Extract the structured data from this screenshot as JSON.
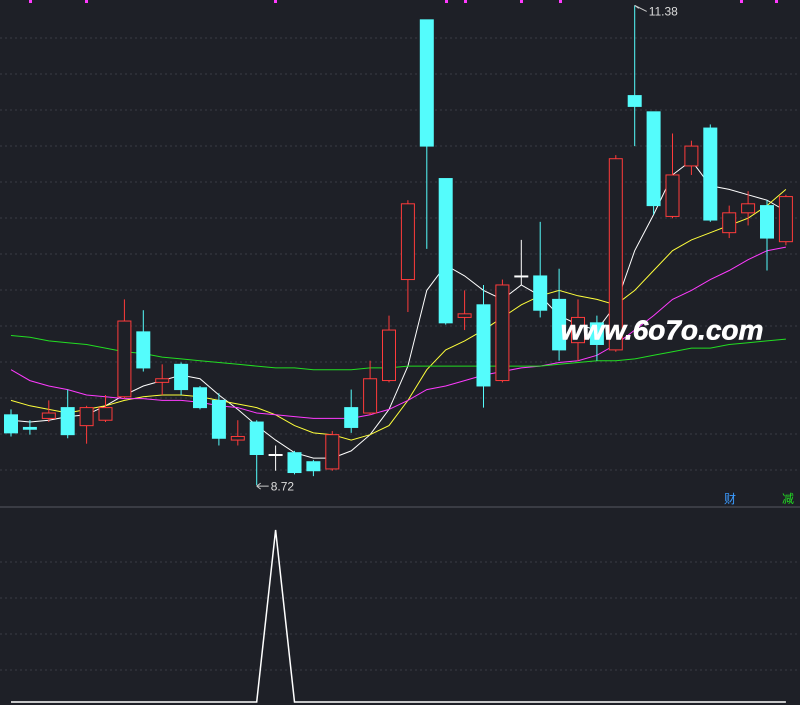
{
  "chart_data": [
    {
      "type": "candlestick",
      "up_color": "#ff3b3b",
      "down_color": "#54fcfc",
      "flat_color": "#ffffff",
      "ylim": [
        8.61,
        11.41
      ],
      "open": [
        9.11,
        9.04,
        9.09,
        9.15,
        9.05,
        9.08,
        9.21,
        9.57,
        9.29,
        9.39,
        9.26,
        9.19,
        8.97,
        9.07,
        8.89,
        8.9,
        8.85,
        8.81,
        9.15,
        9.12,
        9.3,
        9.86,
        11.3,
        10.42,
        9.65,
        9.72,
        9.3,
        9.88,
        9.88,
        9.75,
        9.51,
        9.62,
        9.47,
        10.88,
        10.79,
        10.21,
        10.49,
        10.7,
        10.12,
        10.23,
        10.27,
        10.07
      ],
      "close": [
        9.01,
        9.03,
        9.12,
        9.0,
        9.15,
        9.15,
        9.63,
        9.37,
        9.31,
        9.25,
        9.15,
        8.98,
        8.99,
        8.89,
        8.89,
        8.79,
        8.8,
        9.0,
        9.04,
        9.31,
        9.58,
        10.28,
        10.6,
        9.62,
        9.67,
        9.27,
        9.83,
        9.88,
        9.69,
        9.47,
        9.65,
        9.5,
        10.53,
        10.82,
        10.27,
        10.44,
        10.6,
        10.19,
        10.23,
        10.28,
        10.09,
        10.32
      ],
      "high": [
        9.14,
        9.08,
        9.19,
        9.25,
        9.16,
        9.22,
        9.75,
        9.69,
        9.39,
        9.4,
        9.27,
        9.23,
        9.08,
        9.08,
        8.94,
        8.91,
        8.86,
        9.02,
        9.25,
        9.41,
        9.66,
        10.3,
        11.3,
        10.42,
        9.8,
        9.83,
        9.86,
        10.08,
        10.18,
        9.92,
        9.75,
        9.66,
        10.55,
        11.38,
        10.79,
        10.67,
        10.63,
        10.72,
        10.27,
        10.35,
        10.3,
        10.33
      ],
      "low": [
        8.99,
        9.0,
        9.07,
        8.98,
        8.95,
        9.07,
        9.2,
        9.35,
        9.22,
        9.22,
        9.14,
        8.94,
        8.94,
        8.72,
        8.8,
        8.78,
        8.77,
        8.8,
        9.01,
        9.11,
        9.29,
        9.68,
        10.03,
        9.61,
        9.58,
        9.15,
        9.29,
        9.83,
        9.65,
        9.41,
        9.41,
        9.41,
        9.46,
        10.6,
        10.22,
        10.2,
        10.44,
        10.18,
        10.09,
        10.16,
        9.91,
        10.05
      ],
      "series": [
        {
          "color": "#ffffff",
          "values": [
            9.08,
            9.07,
            9.08,
            9.1,
            9.11,
            9.16,
            9.22,
            9.27,
            9.3,
            9.33,
            9.31,
            9.22,
            9.14,
            9.05,
            8.97,
            8.9,
            8.87,
            8.87,
            8.91,
            9.0,
            9.14,
            9.38,
            9.8,
            9.94,
            9.88,
            9.8,
            9.75,
            9.83,
            9.77,
            9.66,
            9.61,
            9.58,
            9.72,
            10.02,
            10.22,
            10.44,
            10.52,
            10.38,
            10.36,
            10.33,
            10.3,
            10.24
          ]
        },
        {
          "color": "#ffff3b",
          "values": [
            9.19,
            9.16,
            9.14,
            9.12,
            9.14,
            9.16,
            9.19,
            9.21,
            9.22,
            9.22,
            9.21,
            9.19,
            9.17,
            9.15,
            9.11,
            9.05,
            9.01,
            9.0,
            8.97,
            9.0,
            9.05,
            9.19,
            9.36,
            9.47,
            9.52,
            9.58,
            9.65,
            9.72,
            9.77,
            9.8,
            9.77,
            9.75,
            9.72,
            9.8,
            9.91,
            10.02,
            10.08,
            10.12,
            10.16,
            10.2,
            10.27,
            10.36
          ]
        },
        {
          "color": "#ff3bff",
          "values": [
            9.36,
            9.3,
            9.27,
            9.25,
            9.22,
            9.21,
            9.2,
            9.2,
            9.19,
            9.19,
            9.18,
            9.16,
            9.15,
            9.12,
            9.11,
            9.1,
            9.09,
            9.09,
            9.09,
            9.11,
            9.14,
            9.19,
            9.25,
            9.27,
            9.3,
            9.33,
            9.35,
            9.37,
            9.38,
            9.4,
            9.41,
            9.44,
            9.5,
            9.58,
            9.66,
            9.75,
            9.8,
            9.86,
            9.91,
            9.97,
            10.02,
            10.04
          ]
        },
        {
          "color": "#22dd22",
          "values": [
            9.55,
            9.54,
            9.52,
            9.51,
            9.5,
            9.48,
            9.46,
            9.45,
            9.43,
            9.42,
            9.41,
            9.4,
            9.39,
            9.38,
            9.37,
            9.37,
            9.36,
            9.36,
            9.36,
            9.37,
            9.37,
            9.38,
            9.38,
            9.38,
            9.38,
            9.38,
            9.38,
            9.38,
            9.38,
            9.39,
            9.4,
            9.41,
            9.41,
            9.42,
            9.44,
            9.46,
            9.48,
            9.48,
            9.5,
            9.51,
            9.52,
            9.53
          ]
        }
      ],
      "high_label": 11.38,
      "low_label": 8.72,
      "watermark": "www.6o7o.com",
      "badges": [
        {
          "text": "财",
          "color": "#3b9bff"
        },
        {
          "text": "减",
          "color": "#22dd22"
        }
      ]
    },
    {
      "type": "line",
      "color": "#ffffff",
      "ylim": [
        0,
        1
      ],
      "values": [
        0,
        0,
        0,
        0,
        0,
        0,
        0,
        0,
        0,
        0,
        0,
        0,
        0,
        0,
        1,
        0,
        0,
        0,
        0,
        0,
        0,
        0,
        0,
        0,
        0,
        0,
        0,
        0,
        0,
        0,
        0,
        0,
        0,
        0,
        0,
        0,
        0,
        0,
        0,
        0,
        0,
        0
      ]
    }
  ]
}
